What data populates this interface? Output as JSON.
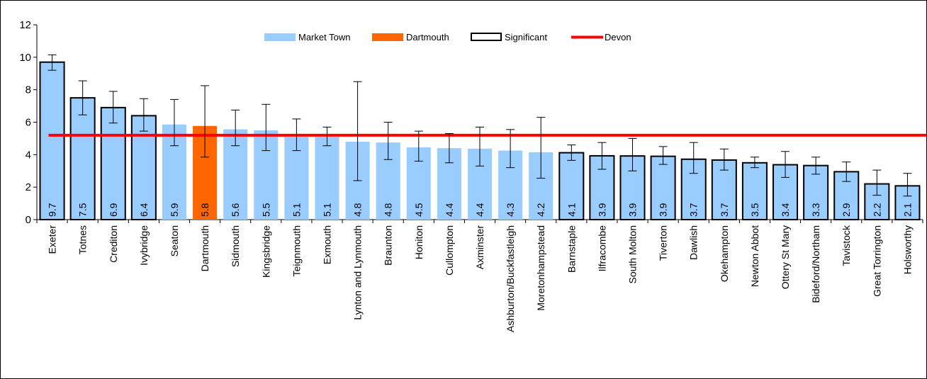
{
  "chart_data": {
    "type": "bar",
    "title": "",
    "xlabel": "",
    "ylabel": "",
    "ylim": [
      0,
      12
    ],
    "yticks": [
      0,
      2,
      4,
      6,
      8,
      10,
      12
    ],
    "grid": false,
    "legend_placement": "top-center",
    "legend": {
      "market_town": "Market Town",
      "dartmouth": "Dartmouth",
      "significant": "Significant",
      "devon": "Devon"
    },
    "colors": {
      "market_town": "#99CCFF",
      "dartmouth": "#FF6600",
      "devon_line": "#FF0000",
      "significant_border": "#000000",
      "error_bar": "#000000"
    },
    "devon_value": 5.2,
    "categories": [
      "Exeter",
      "Totnes",
      "Crediton",
      "Ivybridge",
      "Seaton",
      "Dartmouth",
      "Sidmouth",
      "Kingsbridge",
      "Teignmouth",
      "Exmouth",
      "Lynton and Lynmouth",
      "Braunton",
      "Honiton",
      "Cullompton",
      "Axminster",
      "Ashburton/Buckfastleigh",
      "Moretonhampstead",
      "Barnstaple",
      "Ilfracombe",
      "South Molton",
      "Tiverton",
      "Dawlish",
      "Okehampton",
      "Newton Abbot",
      "Ottery St Mary",
      "Bideford/Northam",
      "Tavistock",
      "Great Torrington",
      "Holsworthy"
    ],
    "values": [
      9.7,
      7.5,
      6.9,
      6.4,
      5.86,
      5.77,
      5.56,
      5.5,
      5.1,
      5.1,
      4.8,
      4.75,
      4.45,
      4.4,
      4.37,
      4.25,
      4.15,
      4.12,
      3.93,
      3.92,
      3.9,
      3.72,
      3.67,
      3.5,
      3.38,
      3.33,
      2.95,
      2.2,
      2.08
    ],
    "value_labels": [
      "9.7",
      "7.5",
      "6.9",
      "6.4",
      "5.9",
      "5.8",
      "5.6",
      "5.5",
      "5.1",
      "5.1",
      "4.8",
      "4.8",
      "4.5",
      "4.4",
      "4.4",
      "4.3",
      "4.2",
      "4.1",
      "3.9",
      "3.9",
      "3.9",
      "3.7",
      "3.7",
      "3.5",
      "3.4",
      "3.3",
      "2.9",
      "2.2",
      "2.1"
    ],
    "error_low": [
      9.2,
      6.45,
      5.95,
      5.45,
      4.55,
      3.85,
      4.55,
      4.25,
      4.25,
      4.55,
      2.4,
      3.7,
      3.6,
      3.5,
      3.3,
      3.2,
      2.55,
      3.65,
      3.1,
      3.0,
      3.4,
      2.85,
      3.05,
      3.2,
      2.6,
      2.8,
      2.35,
      1.5,
      1.45
    ],
    "error_high": [
      10.15,
      8.55,
      7.9,
      7.45,
      7.4,
      8.25,
      6.75,
      7.1,
      6.2,
      5.7,
      8.5,
      6.0,
      5.45,
      5.3,
      5.7,
      5.55,
      6.3,
      4.6,
      4.75,
      5.0,
      4.5,
      4.75,
      4.35,
      3.85,
      4.2,
      3.85,
      3.55,
      3.05,
      2.85
    ],
    "significant": [
      true,
      true,
      true,
      true,
      false,
      false,
      false,
      false,
      false,
      false,
      false,
      false,
      false,
      false,
      false,
      false,
      false,
      true,
      true,
      true,
      true,
      true,
      true,
      true,
      true,
      true,
      true,
      true,
      true
    ],
    "highlight": [
      false,
      false,
      false,
      false,
      false,
      true,
      false,
      false,
      false,
      false,
      false,
      false,
      false,
      false,
      false,
      false,
      false,
      false,
      false,
      false,
      false,
      false,
      false,
      false,
      false,
      false,
      false,
      false,
      false
    ]
  }
}
